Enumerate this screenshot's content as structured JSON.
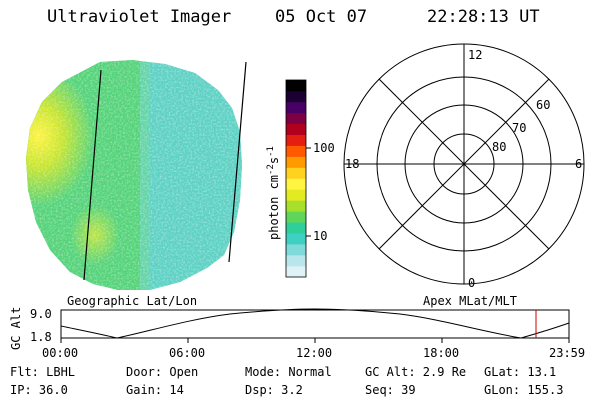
{
  "header": {
    "instrument": "Ultraviolet Imager",
    "date": "05 Oct 07",
    "time": "22:28:13 UT"
  },
  "colorbar": {
    "unit_label": "photon cm",
    "unit_exp1": "-2",
    "unit_mid": "s",
    "unit_exp2": "-1",
    "ticks": [
      "100",
      "10"
    ],
    "colors": [
      "#dff3f6",
      "#b8e6ec",
      "#7fdad9",
      "#3fd0c4",
      "#2fcf9a",
      "#5fd65a",
      "#a6df2c",
      "#e3ea22",
      "#fff43f",
      "#ffd21f",
      "#ff9a00",
      "#ff5a00",
      "#e51e12",
      "#b1001e",
      "#7d0044",
      "#470066",
      "#1b0033",
      "#000000"
    ]
  },
  "polar_plot": {
    "mlt_labels": {
      "top": "12",
      "bottom": "0",
      "left": "18",
      "right": "6"
    },
    "lat_labels": [
      "60",
      "70",
      "80"
    ]
  },
  "map_labels": {
    "left": "Geographic Lat/Lon",
    "right": "Apex MLat/MLT"
  },
  "timeline": {
    "ylabel": "GC Alt",
    "ymax": "9.0",
    "ymin": "1.8",
    "xticks": [
      "00:00",
      "06:00",
      "12:00",
      "18:00",
      "23:59"
    ],
    "marker_time_fraction": 0.935
  },
  "params": {
    "flt": "Flt: LBHL",
    "ip": "IP: 36.0",
    "door": "Door: Open",
    "gain": "Gain: 14",
    "mode": "Mode: Normal",
    "dsp": "Dsp:     3.2",
    "gcalt": "GC Alt: 2.9 Re",
    "seq": "Seq: 39",
    "glat": "GLat:   13.1",
    "glon": "GLon: 155.3"
  }
}
